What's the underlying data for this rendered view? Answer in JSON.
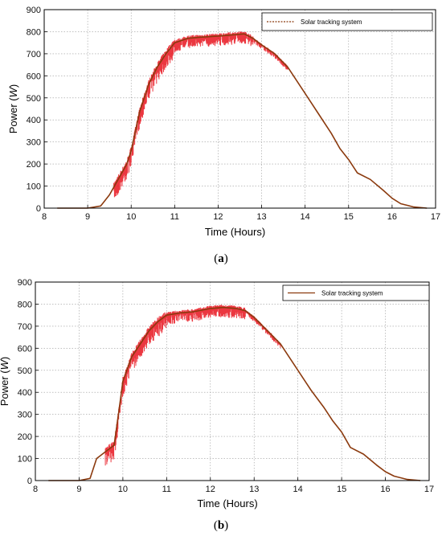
{
  "chart_data": [
    {
      "type": "line",
      "panel_label": "(a)",
      "xlabel": "Time (Hours)",
      "ylabel": "Power (W)",
      "ylabel_main": "Power (",
      "ylabel_unit": "W",
      "ylabel_close": ")",
      "xlim": [
        8,
        17
      ],
      "ylim": [
        0,
        900
      ],
      "xticks": [
        8,
        9,
        10,
        11,
        12,
        13,
        14,
        15,
        16,
        17
      ],
      "yticks": [
        0,
        100,
        200,
        300,
        400,
        500,
        600,
        700,
        800,
        900
      ],
      "grid": true,
      "legend_position": "top-right",
      "series": [
        {
          "name": "Solar tracking system",
          "color": "#8b3a0e",
          "noise_color": "#e8141e",
          "x": [
            8.3,
            9.0,
            9.3,
            9.5,
            9.7,
            9.9,
            10.0,
            10.1,
            10.2,
            10.4,
            10.6,
            10.8,
            11.0,
            11.3,
            11.6,
            12.0,
            12.3,
            12.6,
            12.8,
            13.0,
            13.3,
            13.6,
            14.0,
            14.3,
            14.6,
            14.8,
            15.0,
            15.2,
            15.5,
            15.8,
            16.0,
            16.2,
            16.5,
            16.8
          ],
          "y": [
            0,
            0,
            10,
            60,
            130,
            200,
            260,
            350,
            440,
            560,
            640,
            700,
            750,
            770,
            775,
            780,
            785,
            790,
            770,
            740,
            700,
            640,
            520,
            430,
            340,
            270,
            220,
            160,
            130,
            80,
            45,
            20,
            5,
            0
          ]
        }
      ]
    },
    {
      "type": "line",
      "panel_label": "(b)",
      "xlabel": "Time (Hours)",
      "ylabel": "Power (W)",
      "ylabel_main": "Power (",
      "ylabel_unit": "W",
      "ylabel_close": ")",
      "xlim": [
        8,
        17
      ],
      "ylim": [
        0,
        900
      ],
      "xticks": [
        8,
        9,
        10,
        11,
        12,
        13,
        14,
        15,
        16,
        17
      ],
      "yticks": [
        0,
        100,
        200,
        300,
        400,
        500,
        600,
        700,
        800,
        900
      ],
      "grid": true,
      "legend_position": "top-right",
      "series": [
        {
          "name": "Solar tracking system",
          "color": "#8b3a0e",
          "noise_color": "#e8141e",
          "x": [
            8.3,
            9.0,
            9.25,
            9.4,
            9.6,
            9.8,
            9.9,
            10.0,
            10.2,
            10.4,
            10.6,
            10.8,
            11.0,
            11.3,
            11.6,
            12.0,
            12.3,
            12.6,
            12.8,
            13.0,
            13.3,
            13.6,
            14.0,
            14.3,
            14.6,
            14.8,
            15.0,
            15.2,
            15.5,
            15.8,
            16.0,
            16.2,
            16.5,
            16.8
          ],
          "y": [
            0,
            0,
            10,
            100,
            130,
            160,
            300,
            450,
            560,
            620,
            680,
            720,
            750,
            760,
            765,
            780,
            785,
            780,
            770,
            740,
            680,
            620,
            500,
            410,
            330,
            270,
            220,
            150,
            120,
            70,
            40,
            20,
            5,
            0
          ]
        }
      ]
    }
  ]
}
